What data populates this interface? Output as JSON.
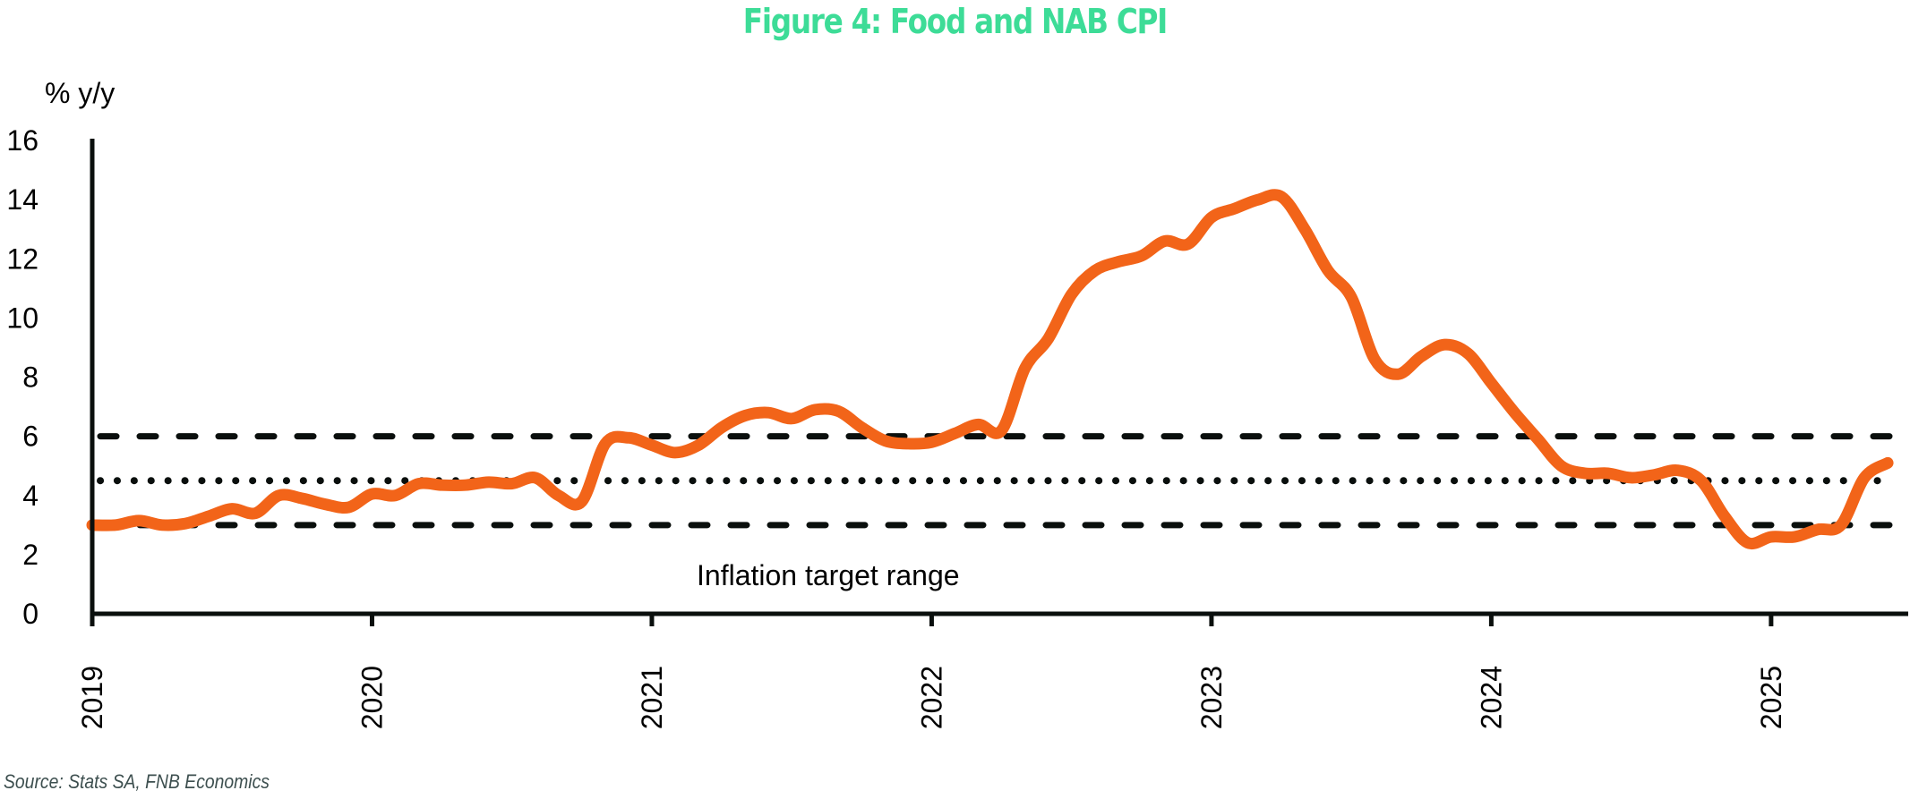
{
  "title_color": "#3ddc97",
  "chart_data": {
    "type": "line",
    "title": "Figure 4: Food and NAB CPI",
    "ylabel": "% y/y",
    "xlabel": "",
    "source": "Source: Stats SA, FNB Economics",
    "ylim": [
      0,
      16
    ],
    "yticks": [
      0,
      2,
      4,
      6,
      8,
      10,
      12,
      14,
      16
    ],
    "xlim": [
      "2019-01",
      "2025-06"
    ],
    "xticks": [
      "2019",
      "2020",
      "2021",
      "2022",
      "2023",
      "2024",
      "2025"
    ],
    "grid": false,
    "legend": "none",
    "series": [
      {
        "name": "Food and NAB CPI",
        "color": "#f26419",
        "x": [
          "2019-01",
          "2019-02",
          "2019-03",
          "2019-04",
          "2019-05",
          "2019-06",
          "2019-07",
          "2019-08",
          "2019-09",
          "2019-10",
          "2019-11",
          "2019-12",
          "2020-01",
          "2020-02",
          "2020-03",
          "2020-04",
          "2020-05",
          "2020-06",
          "2020-07",
          "2020-08",
          "2020-09",
          "2020-10",
          "2020-11",
          "2020-12",
          "2021-01",
          "2021-02",
          "2021-03",
          "2021-04",
          "2021-05",
          "2021-06",
          "2021-07",
          "2021-08",
          "2021-09",
          "2021-10",
          "2021-11",
          "2021-12",
          "2022-01",
          "2022-02",
          "2022-03",
          "2022-04",
          "2022-05",
          "2022-06",
          "2022-07",
          "2022-08",
          "2022-09",
          "2022-10",
          "2022-11",
          "2022-12",
          "2023-01",
          "2023-02",
          "2023-03",
          "2023-04",
          "2023-05",
          "2023-06",
          "2023-07",
          "2023-08",
          "2023-09",
          "2023-10",
          "2023-11",
          "2023-12",
          "2024-01",
          "2024-02",
          "2024-03",
          "2024-04",
          "2024-05",
          "2024-06",
          "2024-07",
          "2024-08",
          "2024-09",
          "2024-10",
          "2024-11",
          "2024-12",
          "2025-01",
          "2025-02",
          "2025-03",
          "2025-04",
          "2025-05",
          "2025-06"
        ],
        "values": [
          3.0,
          3.0,
          3.15,
          3.0,
          3.05,
          3.3,
          3.55,
          3.4,
          4.0,
          3.9,
          3.7,
          3.6,
          4.05,
          4.0,
          4.4,
          4.35,
          4.35,
          4.45,
          4.4,
          4.6,
          4.0,
          3.8,
          5.75,
          5.95,
          5.7,
          5.45,
          5.7,
          6.3,
          6.7,
          6.8,
          6.6,
          6.9,
          6.85,
          6.3,
          5.85,
          5.75,
          5.8,
          6.1,
          6.4,
          6.2,
          8.3,
          9.3,
          10.8,
          11.6,
          11.9,
          12.1,
          12.6,
          12.5,
          13.4,
          13.7,
          14.0,
          14.1,
          13.0,
          11.6,
          10.7,
          8.6,
          8.1,
          8.7,
          9.1,
          8.8,
          7.8,
          6.8,
          5.9,
          5.0,
          4.75,
          4.75,
          4.6,
          4.7,
          4.85,
          4.5,
          3.3,
          2.4,
          2.6,
          2.6,
          2.85,
          3.0,
          4.6,
          5.1
        ]
      }
    ],
    "reference_lines": [
      {
        "name": "target-upper",
        "value": 6,
        "style": "dashed"
      },
      {
        "name": "target-midpoint",
        "value": 4.5,
        "style": "dotted"
      },
      {
        "name": "target-lower",
        "value": 3,
        "style": "dashed"
      }
    ],
    "annotations": [
      {
        "text": "Inflation target range",
        "x": "2021-12",
        "y": 1.3
      }
    ]
  }
}
